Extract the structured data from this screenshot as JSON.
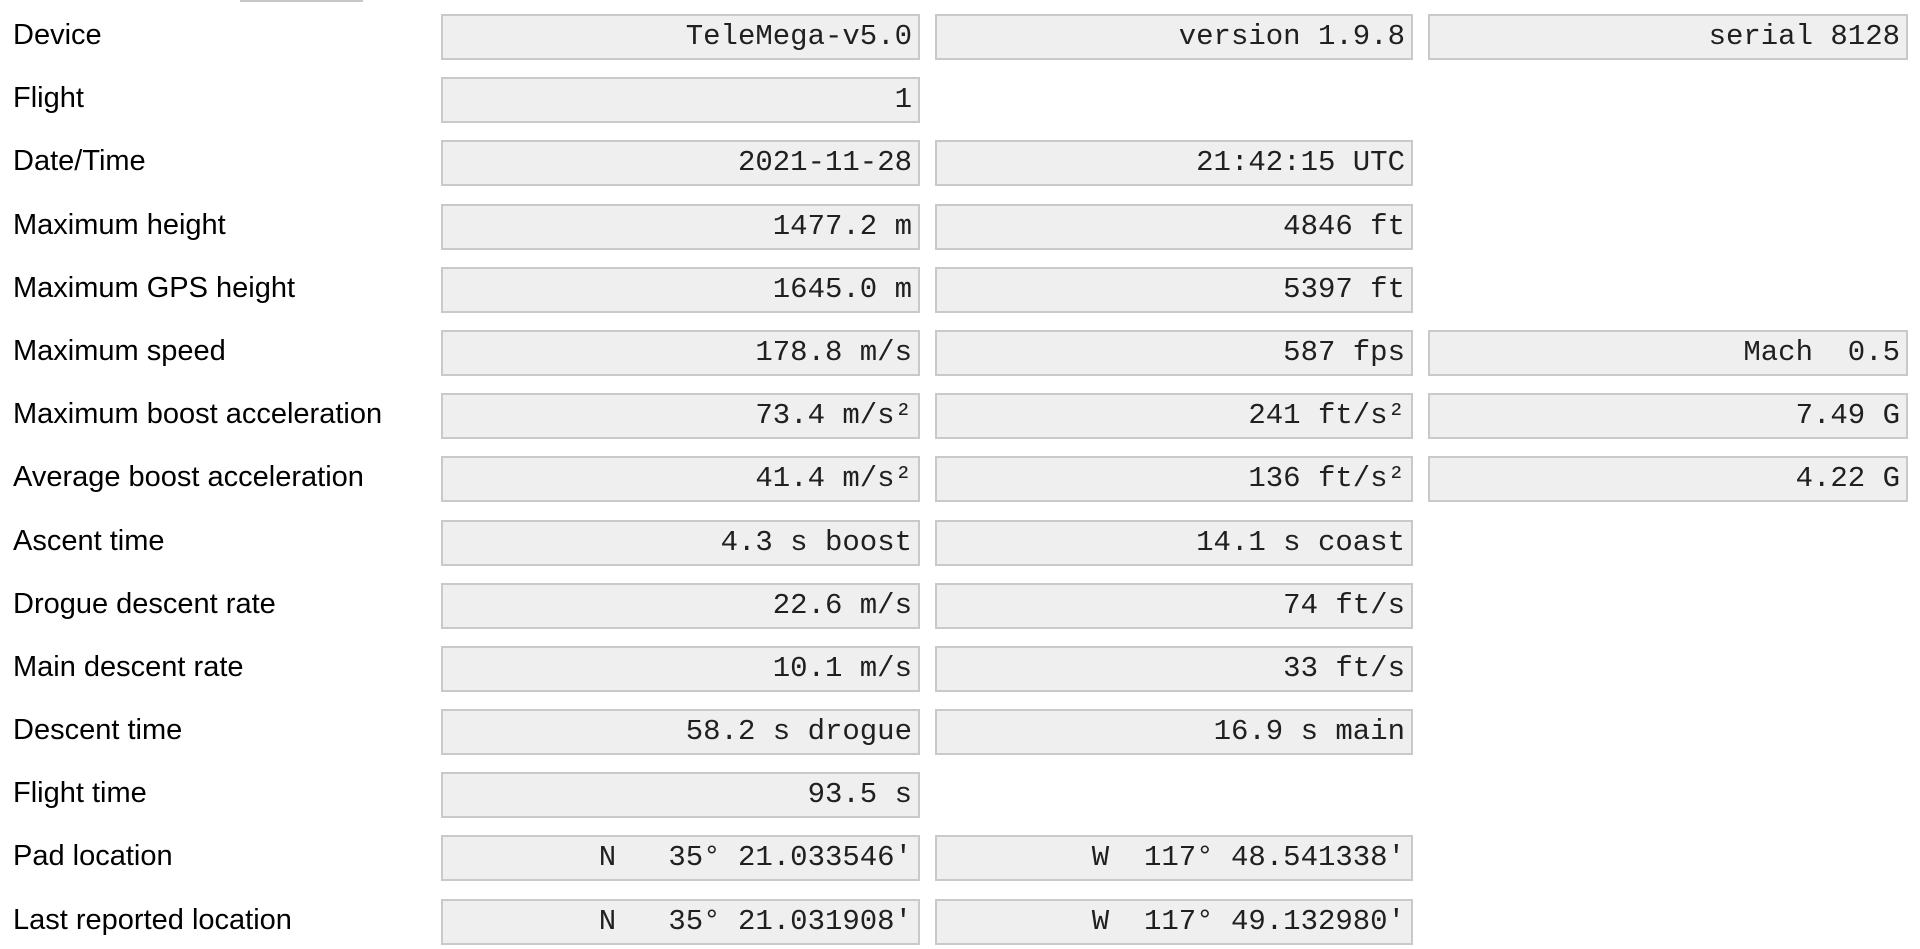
{
  "rows": [
    {
      "label": "Device",
      "v1": "TeleMega-v5.0",
      "v2": "version 1.9.8",
      "v3": "serial 8128"
    },
    {
      "label": "Flight",
      "v1": "1"
    },
    {
      "label": "Date/Time",
      "v1": "2021-11-28",
      "v2": "21:42:15 UTC"
    },
    {
      "label": "Maximum height",
      "v1": "1477.2 m",
      "v2": "4846 ft"
    },
    {
      "label": "Maximum GPS height",
      "v1": "1645.0 m",
      "v2": "5397 ft"
    },
    {
      "label": "Maximum speed",
      "v1": "178.8 m/s",
      "v2": "587 fps",
      "v3": "Mach  0.5"
    },
    {
      "label": "Maximum boost acceleration",
      "v1": "73.4 m/s²",
      "v2": "241 ft/s²",
      "v3": "7.49 G"
    },
    {
      "label": "Average boost acceleration",
      "v1": "41.4 m/s²",
      "v2": "136 ft/s²",
      "v3": "4.22 G"
    },
    {
      "label": "Ascent time",
      "v1": "4.3 s boost",
      "v2": "14.1 s coast"
    },
    {
      "label": "Drogue descent rate",
      "v1": "22.6 m/s",
      "v2": "74 ft/s"
    },
    {
      "label": "Main descent rate",
      "v1": "10.1 m/s",
      "v2": "33 ft/s"
    },
    {
      "label": "Descent time",
      "v1": "58.2 s drogue",
      "v2": "16.9 s main"
    },
    {
      "label": "Flight time",
      "v1": "93.5 s"
    },
    {
      "label": "Pad location",
      "v1": "N   35° 21.033546'",
      "v2": "W  117° 48.541338'"
    },
    {
      "label": "Last reported location",
      "v1": "N   35° 21.031908'",
      "v2": "W  117° 49.132980'"
    }
  ]
}
